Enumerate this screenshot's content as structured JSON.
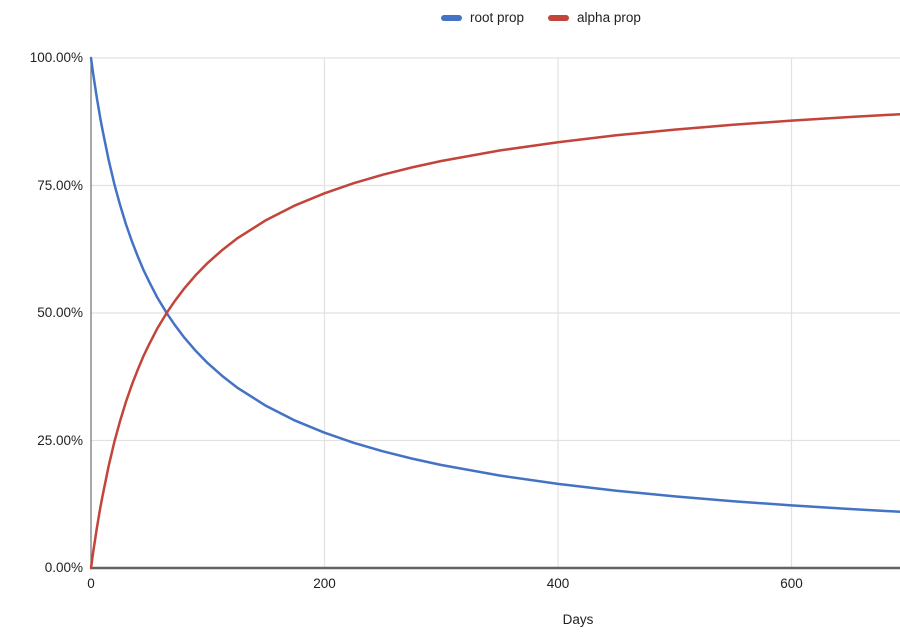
{
  "chart_data": {
    "type": "line",
    "title": "",
    "xlabel": "Days",
    "ylabel": "",
    "grid": true,
    "legend_position": "top-center",
    "xlim": [
      0,
      693
    ],
    "ylim": [
      0,
      100
    ],
    "x_ticks": [
      0,
      200,
      400,
      600
    ],
    "x_tick_labels": [
      "0",
      "200",
      "400",
      "600"
    ],
    "y_ticks": [
      0,
      25,
      50,
      75,
      100
    ],
    "y_tick_labels": [
      "0.00%",
      "25.00%",
      "50.00%",
      "75.00%",
      "100.00%"
    ],
    "x": [
      0,
      2,
      5,
      8,
      10,
      15,
      20,
      25,
      30,
      35,
      40,
      45,
      50,
      57,
      65,
      72,
      80,
      90,
      100,
      112,
      125,
      150,
      175,
      200,
      225,
      250,
      275,
      300,
      350,
      400,
      450,
      500,
      550,
      600,
      650,
      693
    ],
    "series": [
      {
        "name": "root prop",
        "color": "#4472c4",
        "values": [
          100,
          96.72,
          92.24,
          88.18,
          85.7,
          80.14,
          75.31,
          71.09,
          67.38,
          64.06,
          61.13,
          58.44,
          56.04,
          52.97,
          49.92,
          47.56,
          45.15,
          42.49,
          40.16,
          37.72,
          35.42,
          31.78,
          28.88,
          26.52,
          24.55,
          22.88,
          21.45,
          20.2,
          18.14,
          16.5,
          15.16,
          14.04,
          13.09,
          12.27,
          11.56,
          11.02
        ]
      },
      {
        "name": "alpha prop",
        "color": "#c2443a",
        "values": [
          0,
          3.28,
          7.76,
          11.82,
          14.3,
          19.86,
          24.69,
          28.91,
          32.62,
          35.94,
          38.87,
          41.56,
          43.96,
          47.03,
          50.08,
          52.44,
          54.85,
          57.51,
          59.84,
          62.28,
          64.58,
          68.22,
          71.12,
          73.48,
          75.45,
          77.12,
          78.55,
          79.8,
          81.86,
          83.5,
          84.84,
          85.96,
          86.91,
          87.73,
          88.44,
          88.98
        ]
      }
    ],
    "colors": {
      "gridline": "#e2e2e2",
      "x_axis_line": "#636363",
      "y_axis_line": "#6e6e6e",
      "label_text": "#1f1f1f"
    }
  }
}
